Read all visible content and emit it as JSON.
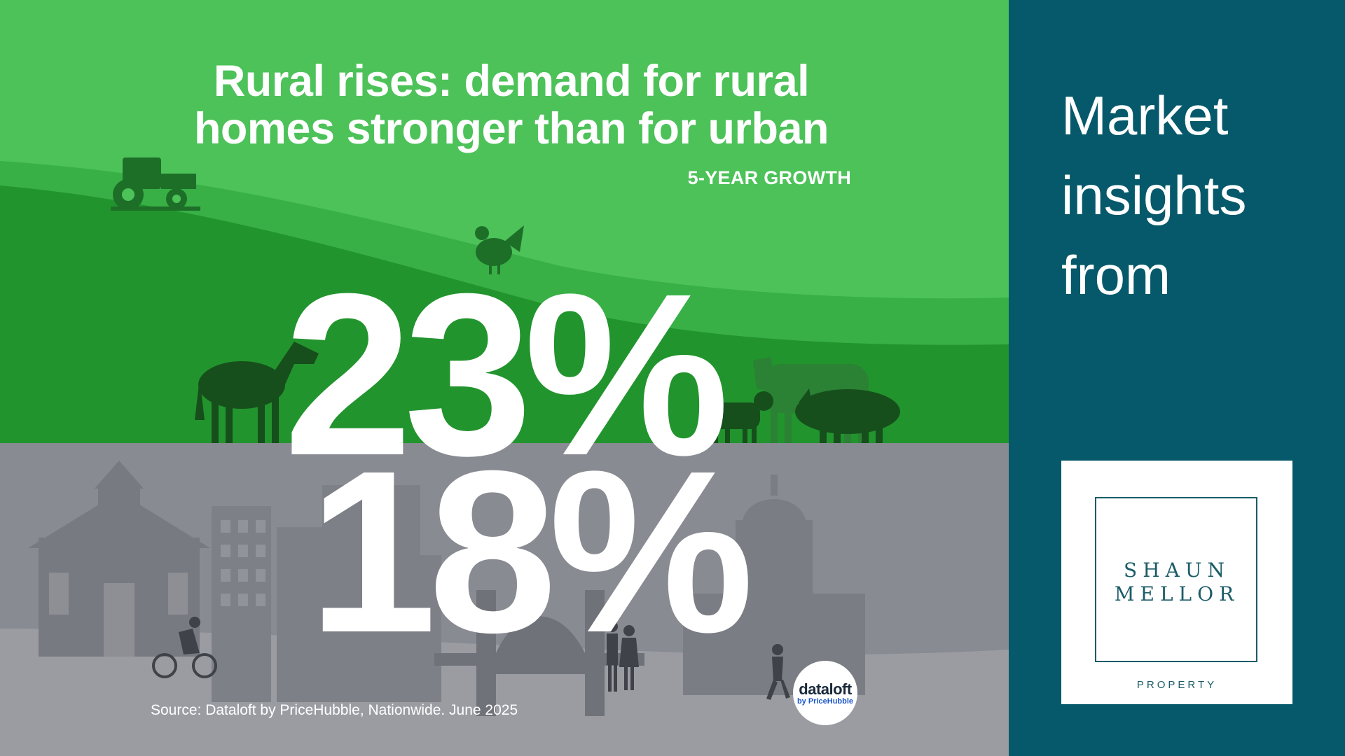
{
  "infographic": {
    "title_line1": "Rural rises: demand for rural",
    "title_line2": "homes stronger than for urban",
    "subtitle": "5-YEAR GROWTH",
    "rural_growth": "23%",
    "urban_growth": "18%",
    "source": "Source: Dataloft by PriceHubble, Nationwide. June 2025",
    "badge_brand": "dataloft",
    "badge_sub": "by PriceHubble",
    "colors": {
      "rural_light": "#4cc259",
      "rural_dark": "#1f8e2a",
      "urban_grey": "#888b92",
      "panel": "#05596a"
    }
  },
  "sidebar": {
    "headline_line1": "Market",
    "headline_line2": "insights",
    "headline_line3": "from",
    "logo_line1": "SHAUN",
    "logo_line2": "MELLOR",
    "logo_tagline": "PROPERTY"
  },
  "icons": [
    "tractor-icon",
    "rooster-icon",
    "horse-icon",
    "cow-icon",
    "calf-icon",
    "pig-icon",
    "church-icon",
    "tower-block-icon",
    "bridge-icon",
    "town-hall-icon",
    "cyclist-icon",
    "walking-couple-icon",
    "runner-icon"
  ]
}
